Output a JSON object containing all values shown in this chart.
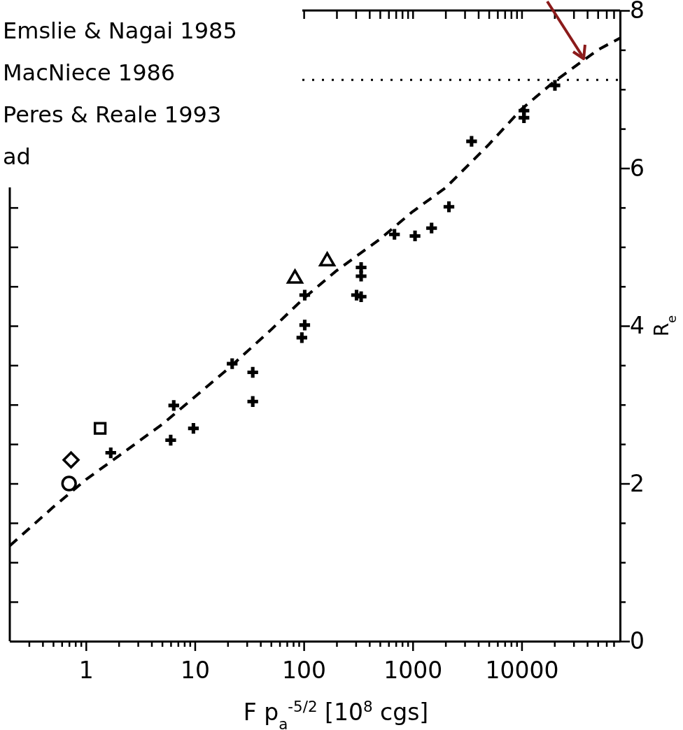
{
  "chart_data": {
    "type": "scatter",
    "xlabel": "F p$_{a}$$^{-5/2}$ [10$^{8}$ cgs]",
    "ylabel": "R$_{e}$",
    "annotations": [
      "Emslie & Nagai 1985",
      "MacNiece 1986",
      "Peres & Reale 1993",
      "ad"
    ],
    "log": "x",
    "xlim": [
      0.2,
      80000
    ],
    "xticks": [
      {
        "value": 0.3,
        "label": null
      },
      {
        "value": 0.4,
        "label": null
      },
      {
        "value": 0.5,
        "label": null
      },
      {
        "value": 0.6,
        "label": null
      },
      {
        "value": 0.7,
        "label": null
      },
      {
        "value": 0.8,
        "label": null
      },
      {
        "value": 0.9,
        "label": null
      },
      1,
      {
        "value": 2,
        "label": null
      },
      {
        "value": 3,
        "label": null
      },
      {
        "value": 4,
        "label": null
      },
      {
        "value": 5,
        "label": null
      },
      {
        "value": 6,
        "label": null
      },
      {
        "value": 7,
        "label": null
      },
      {
        "value": 8,
        "label": null
      },
      {
        "value": 9,
        "label": null
      },
      10,
      {
        "value": 20,
        "label": null
      },
      {
        "value": 30,
        "label": null
      },
      {
        "value": 40,
        "label": null
      },
      {
        "value": 50,
        "label": null
      },
      {
        "value": 60,
        "label": null
      },
      {
        "value": 70,
        "label": null
      },
      {
        "value": 80,
        "label": null
      },
      {
        "value": 90,
        "label": null
      },
      100,
      {
        "value": 200,
        "label": null
      },
      {
        "value": 300,
        "label": null
      },
      {
        "value": 400,
        "label": null
      },
      {
        "value": 500,
        "label": null
      },
      {
        "value": 600,
        "label": null
      },
      {
        "value": 700,
        "label": null
      },
      {
        "value": 800,
        "label": null
      },
      {
        "value": 900,
        "label": null
      },
      1000,
      {
        "value": 2000,
        "label": null
      },
      {
        "value": 3000,
        "label": null
      },
      {
        "value": 4000,
        "label": null
      },
      {
        "value": 5000,
        "label": null
      },
      {
        "value": 6000,
        "label": null
      },
      {
        "value": 7000,
        "label": null
      },
      {
        "value": 8000,
        "label": null
      },
      {
        "value": 9000,
        "label": null
      },
      10000,
      {
        "value": 20000,
        "label": null
      },
      {
        "value": 30000,
        "label": null
      },
      {
        "value": 40000,
        "label": null
      },
      {
        "value": 50000,
        "label": null
      },
      {
        "value": 60000,
        "label": null
      },
      {
        "value": 70000,
        "label": null
      }
    ],
    "ylim": [
      0,
      8
    ],
    "yticks": [
      0,
      {
        "value": 0.5,
        "label": null
      },
      {
        "value": 1,
        "label": null
      },
      {
        "value": 1.5,
        "label": null
      },
      2,
      {
        "value": 2.5,
        "label": null
      },
      {
        "value": 3,
        "label": null
      },
      {
        "value": 3.5,
        "label": null
      },
      4,
      {
        "value": 4.5,
        "label": null
      },
      {
        "value": 5,
        "label": null
      },
      {
        "value": 5.5,
        "label": null
      },
      6,
      {
        "value": 6.5,
        "label": null
      },
      {
        "value": 7,
        "label": null
      },
      {
        "value": 7.5,
        "label": null
      },
      8
    ],
    "ref_lines": [
      {
        "axis": "y",
        "value": 7.12,
        "line_style": "dotted",
        "color": "#000000"
      }
    ],
    "series": [
      {
        "type": "line",
        "line_style": "dashed",
        "marker": "none",
        "color": "#000000",
        "x": [
          0.2,
          0.5,
          1,
          2,
          5,
          10,
          20,
          50,
          100,
          200,
          500,
          1000,
          2000,
          5000,
          10000,
          20000,
          50000,
          80000
        ],
        "values": [
          1.21,
          1.7,
          2.05,
          2.35,
          2.75,
          3.1,
          3.45,
          3.95,
          4.35,
          4.7,
          5.1,
          5.45,
          5.75,
          6.3,
          6.75,
          7.1,
          7.5,
          7.65
        ]
      },
      {
        "type": "scatter",
        "marker": "circle",
        "color": "#000000",
        "x": [
          0.7
        ],
        "values": [
          2.0
        ]
      },
      {
        "type": "scatter",
        "marker": "diamond",
        "color": "#000000",
        "x": [
          0.73
        ],
        "values": [
          2.3
        ]
      },
      {
        "type": "scatter",
        "marker": "square",
        "color": "#000000",
        "x": [
          1.35
        ],
        "values": [
          2.7
        ]
      },
      {
        "type": "scatter",
        "marker": "triangle",
        "color": "#000000",
        "x": [
          83,
          164
        ],
        "values": [
          4.6,
          4.82
        ]
      },
      {
        "type": "scatter",
        "marker": "cross",
        "color": "#000000",
        "x": [
          1.69,
          6.0,
          6.4,
          9.7,
          22,
          34,
          34,
          102,
          102,
          96,
          305,
          336,
          336,
          336,
          680,
          1050,
          1490,
          2150,
          3470,
          10500,
          10500,
          20200
        ],
        "values": [
          2.39,
          2.55,
          2.99,
          2.7,
          3.52,
          3.41,
          3.04,
          4.39,
          4.01,
          3.85,
          4.39,
          4.37,
          4.74,
          4.63,
          5.16,
          5.14,
          5.24,
          5.51,
          6.34,
          6.73,
          6.64,
          7.05
        ]
      }
    ]
  }
}
